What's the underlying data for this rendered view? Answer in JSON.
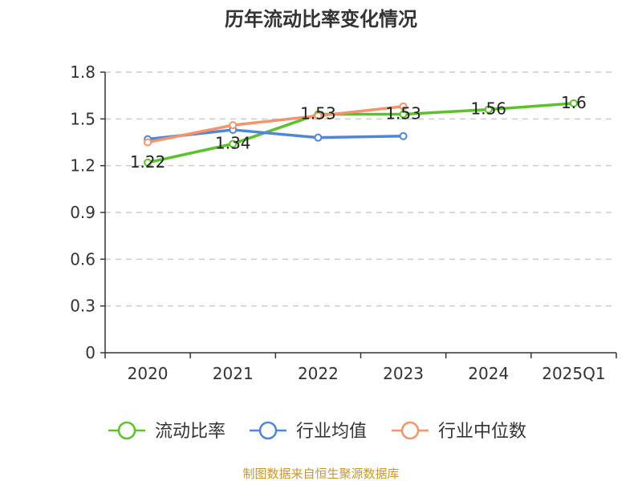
{
  "chart_data": {
    "type": "line",
    "title": "历年流动比率变化情况",
    "categories": [
      "2020",
      "2021",
      "2022",
      "2023",
      "2024",
      "2025Q1"
    ],
    "ylim": [
      0,
      1.8
    ],
    "yticks": [
      "0",
      "0.3",
      "0.6",
      "0.9",
      "1.2",
      "1.5",
      "1.8"
    ],
    "grid": true,
    "legend_position": "bottom",
    "series": [
      {
        "name": "流动比率",
        "color": "#5cc22a",
        "values": [
          1.22,
          1.34,
          1.53,
          1.53,
          1.56,
          1.6
        ],
        "labels": [
          "1.22",
          "1.34",
          "1.53",
          "1.53",
          "1.56",
          "1.6"
        ]
      },
      {
        "name": "行业均值",
        "color": "#4f86dc",
        "values": [
          1.37,
          1.43,
          1.38,
          1.39,
          null,
          null
        ]
      },
      {
        "name": "行业中位数",
        "color": "#f4946b",
        "values": [
          1.35,
          1.46,
          1.52,
          1.58,
          null,
          null
        ]
      }
    ],
    "source": "制图数据来自恒生聚源数据库",
    "source_color": "#c8962e"
  }
}
